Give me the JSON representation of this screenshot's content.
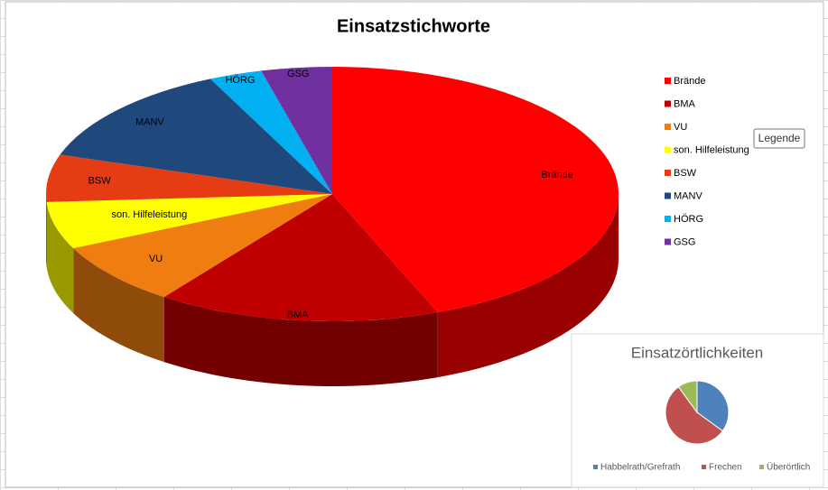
{
  "chart_data": [
    {
      "type": "pie3d",
      "title": "Einsatzstichworte",
      "categories": [
        "Brände",
        "BMA",
        "VU",
        "son. Hilfeleistung",
        "BSW",
        "MANV",
        "HÖRG",
        "GSG"
      ],
      "values": [
        44,
        16,
        8,
        6,
        6,
        13,
        3,
        4
      ],
      "colors": [
        "#ff0000",
        "#c00000",
        "#ef7d10",
        "#ffff00",
        "#e63c14",
        "#1f497d",
        "#00b0f0",
        "#7030a0"
      ],
      "legend": "right"
    },
    {
      "type": "pie",
      "title": "Einsatzörtlichkeiten",
      "categories": [
        "Habbelrath/Grefrath",
        "Frechen",
        "Überörtlich"
      ],
      "values": [
        35,
        55,
        10
      ],
      "colors": [
        "#4f81bd",
        "#c0504d",
        "#9bbb59"
      ],
      "legend": "bottom"
    }
  ],
  "tooltip": "Legende"
}
